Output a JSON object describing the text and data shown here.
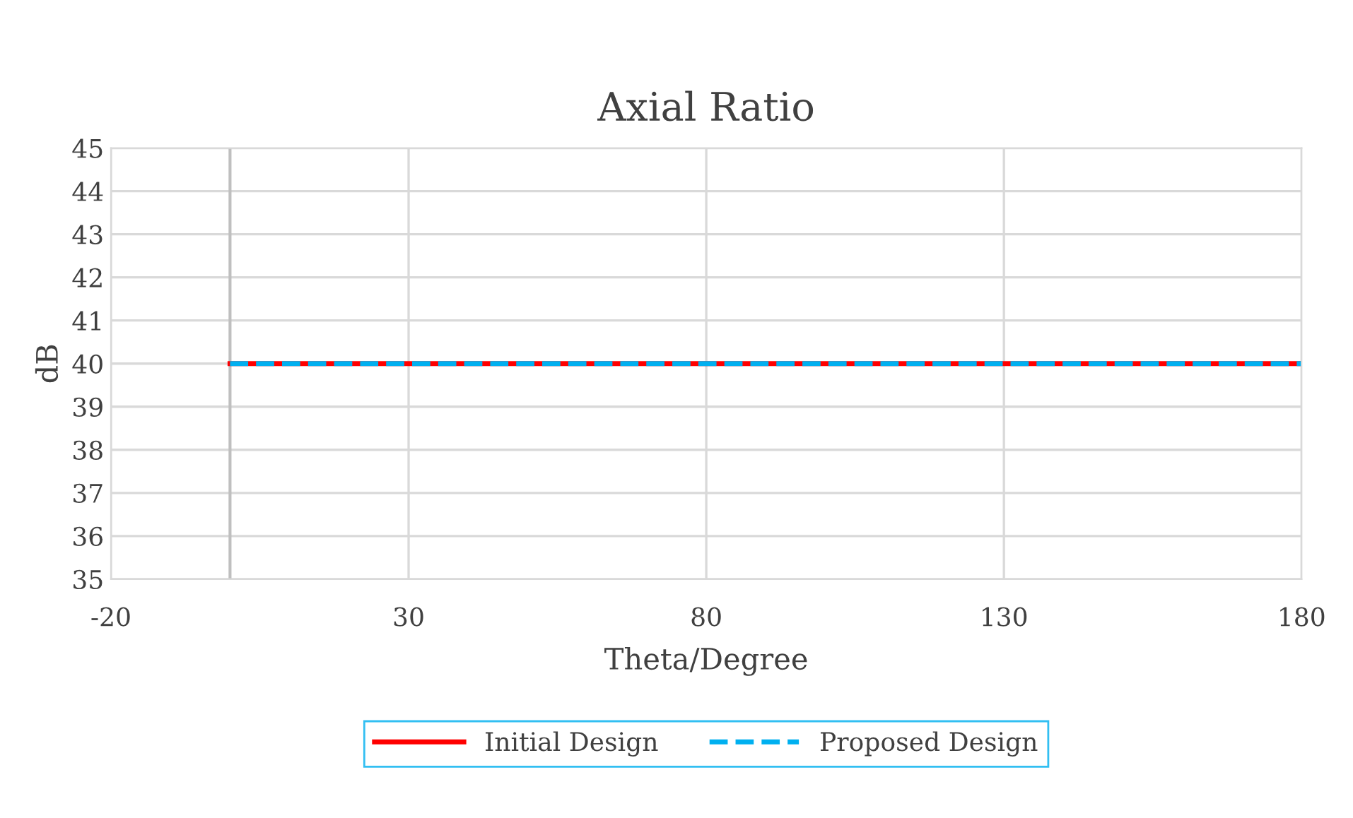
{
  "chart_data": {
    "type": "line",
    "title": "Axial Ratio",
    "xlabel": "Theta/Degree",
    "ylabel": "dB",
    "x": [
      0,
      180
    ],
    "series": [
      {
        "name": "Initial Design",
        "color": "#ff0000",
        "values": [
          40,
          40
        ],
        "line_style": "solid"
      },
      {
        "name": "Proposed Design",
        "color": "#00b0f0",
        "values": [
          40,
          40
        ],
        "line_style": "dashed"
      }
    ],
    "xlim": [
      -20,
      180
    ],
    "xticks": [
      -20,
      30,
      80,
      130,
      180
    ],
    "ylim": [
      35,
      45
    ],
    "yticks": [
      35,
      36,
      37,
      38,
      39,
      40,
      41,
      42,
      43,
      44,
      45
    ],
    "ref_lines": [
      {
        "axis": "x",
        "value": 0,
        "color": "#bfbfbf"
      }
    ],
    "grid": true,
    "legend": "bottom"
  }
}
